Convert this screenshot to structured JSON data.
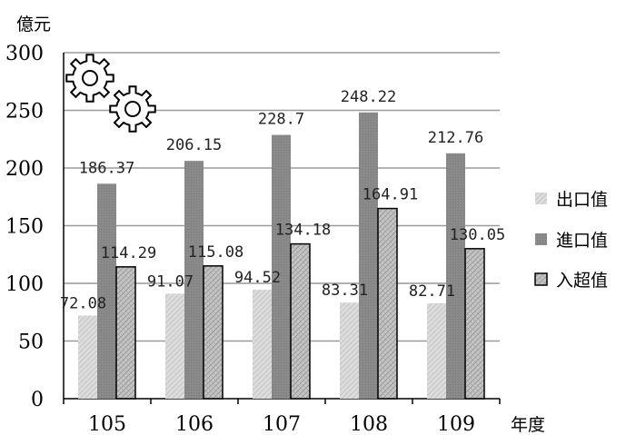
{
  "chart_data": {
    "type": "bar",
    "ylabel": "億元",
    "xlabel": "年度",
    "ylim": [
      0,
      300
    ],
    "yticks": [
      0,
      50,
      100,
      150,
      200,
      250,
      300
    ],
    "grid": true,
    "legend_position": "right",
    "categories": [
      "105",
      "106",
      "107",
      "108",
      "109"
    ],
    "series": [
      {
        "name": "出口值",
        "values": [
          72.08,
          91.07,
          94.52,
          83.31,
          82.71
        ],
        "labels": [
          "72.08",
          "91.07",
          "94.52",
          "83.31",
          "82.71"
        ],
        "color": "#d0d0d0"
      },
      {
        "name": "進口值",
        "values": [
          186.37,
          206.15,
          228.7,
          248.22,
          212.76
        ],
        "labels": [
          "186.37",
          "206.15",
          "228.7",
          "248.22",
          "212.76"
        ],
        "color": "#858585"
      },
      {
        "name": "入超值",
        "values": [
          114.29,
          115.08,
          134.18,
          164.91,
          130.05
        ],
        "labels": [
          "114.29",
          "115.08",
          "134.18",
          "164.91",
          "130.05"
        ],
        "color": "#a8a8a8"
      }
    ],
    "decoration_icons": [
      "gear-icon",
      "gear-icon"
    ]
  }
}
